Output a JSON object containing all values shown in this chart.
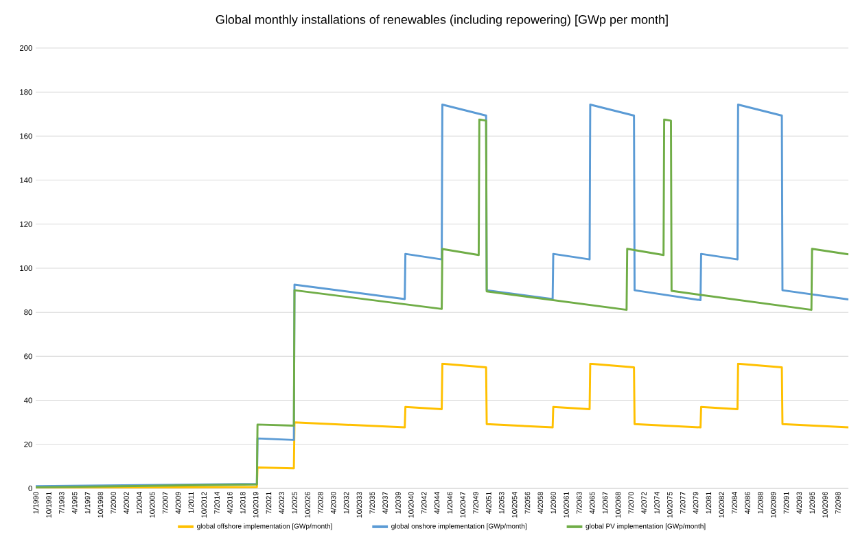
{
  "chart_data": {
    "type": "line",
    "title": "Global monthly installations of renewables (including repowering) [GWp per month]",
    "xlim": [
      "1990-01",
      "2099-12"
    ],
    "ylim": [
      0,
      200
    ],
    "yticks": [
      0,
      20,
      40,
      60,
      80,
      100,
      120,
      140,
      160,
      180,
      200
    ],
    "xticks": [
      {
        "value": "1990-01",
        "label": "1/1990"
      },
      {
        "value": "1991-10",
        "label": "10/1991"
      },
      {
        "value": "1993-07",
        "label": "7/1993"
      },
      {
        "value": "1995-04",
        "label": "4/1995"
      },
      {
        "value": "1997-01",
        "label": "1/1997"
      },
      {
        "value": "1998-10",
        "label": "10/1998"
      },
      {
        "value": "2000-07",
        "label": "7/2000"
      },
      {
        "value": "2002-04",
        "label": "4/2002"
      },
      {
        "value": "2004-01",
        "label": "1/2004"
      },
      {
        "value": "2005-10",
        "label": "10/2005"
      },
      {
        "value": "2007-07",
        "label": "7/2007"
      },
      {
        "value": "2009-04",
        "label": "4/2009"
      },
      {
        "value": "2011-01",
        "label": "1/2011"
      },
      {
        "value": "2012-10",
        "label": "10/2012"
      },
      {
        "value": "2014-07",
        "label": "7/2014"
      },
      {
        "value": "2016-04",
        "label": "4/2016"
      },
      {
        "value": "2018-01",
        "label": "1/2018"
      },
      {
        "value": "2019-10",
        "label": "10/2019"
      },
      {
        "value": "2021-07",
        "label": "7/2021"
      },
      {
        "value": "2023-04",
        "label": "4/2023"
      },
      {
        "value": "2025-01",
        "label": "1/2025"
      },
      {
        "value": "2026-10",
        "label": "10/2026"
      },
      {
        "value": "2028-07",
        "label": "7/2028"
      },
      {
        "value": "2030-04",
        "label": "4/2030"
      },
      {
        "value": "2032-01",
        "label": "1/2032"
      },
      {
        "value": "2033-10",
        "label": "10/2033"
      },
      {
        "value": "2035-07",
        "label": "7/2035"
      },
      {
        "value": "2037-04",
        "label": "4/2037"
      },
      {
        "value": "2039-01",
        "label": "1/2039"
      },
      {
        "value": "2040-10",
        "label": "10/2040"
      },
      {
        "value": "2042-07",
        "label": "7/2042"
      },
      {
        "value": "2044-04",
        "label": "4/2044"
      },
      {
        "value": "2046-01",
        "label": "1/2046"
      },
      {
        "value": "2047-10",
        "label": "10/2047"
      },
      {
        "value": "2049-07",
        "label": "7/2049"
      },
      {
        "value": "2051-04",
        "label": "4/2051"
      },
      {
        "value": "2053-01",
        "label": "1/2053"
      },
      {
        "value": "2054-10",
        "label": "10/2054"
      },
      {
        "value": "2056-07",
        "label": "7/2056"
      },
      {
        "value": "2058-04",
        "label": "4/2058"
      },
      {
        "value": "2060-01",
        "label": "1/2060"
      },
      {
        "value": "2061-10",
        "label": "10/2061"
      },
      {
        "value": "2063-07",
        "label": "7/2063"
      },
      {
        "value": "2065-04",
        "label": "4/2065"
      },
      {
        "value": "2067-01",
        "label": "1/2067"
      },
      {
        "value": "2068-10",
        "label": "10/2068"
      },
      {
        "value": "2070-07",
        "label": "7/2070"
      },
      {
        "value": "2072-04",
        "label": "4/2072"
      },
      {
        "value": "2074-01",
        "label": "1/2074"
      },
      {
        "value": "2075-10",
        "label": "10/2075"
      },
      {
        "value": "2077-07",
        "label": "7/2077"
      },
      {
        "value": "2079-04",
        "label": "4/2079"
      },
      {
        "value": "2081-01",
        "label": "1/2081"
      },
      {
        "value": "2082-10",
        "label": "10/2082"
      },
      {
        "value": "2084-07",
        "label": "7/2084"
      },
      {
        "value": "2086-04",
        "label": "4/2086"
      },
      {
        "value": "2088-01",
        "label": "1/2088"
      },
      {
        "value": "2089-10",
        "label": "10/2089"
      },
      {
        "value": "2091-07",
        "label": "7/2091"
      },
      {
        "value": "2093-04",
        "label": "4/2093"
      },
      {
        "value": "2095-01",
        "label": "1/2095"
      },
      {
        "value": "2096-10",
        "label": "10/2096"
      },
      {
        "value": "2098-07",
        "label": "7/2098"
      }
    ],
    "grid": "y",
    "legend": "bottom",
    "line_style": "solid",
    "series": [
      {
        "name": "global offshore implementation [GWp/month]",
        "color": "#ffc000",
        "x": [
          "1990-01",
          "2019-12",
          "2020-01",
          "2024-12",
          "2025-01",
          "2039-12",
          "2040-01",
          "2044-12",
          "2045-01",
          "2050-12",
          "2051-01",
          "2059-12",
          "2060-01",
          "2064-12",
          "2065-01",
          "2070-12",
          "2071-01",
          "2079-12",
          "2080-01",
          "2084-12",
          "2085-01",
          "2090-12",
          "2091-01",
          "2099-12"
        ],
        "values": [
          0.2,
          0.6,
          9.5,
          9.1,
          30,
          27.7,
          37,
          36,
          56.6,
          55,
          29.2,
          27.7,
          37,
          36,
          56.6,
          55,
          29.2,
          27.7,
          37,
          36,
          56.6,
          55,
          29.2,
          27.7
        ]
      },
      {
        "name": "global onshore implementation [GWp/month]",
        "color": "#5b9bd5",
        "x": [
          "1990-01",
          "2019-12",
          "2020-01",
          "2024-12",
          "2025-01",
          "2039-12",
          "2040-01",
          "2044-12",
          "2045-01",
          "2050-12",
          "2051-01",
          "2059-12",
          "2060-01",
          "2064-12",
          "2065-01",
          "2070-12",
          "2071-01",
          "2079-12",
          "2080-01",
          "2084-12",
          "2085-01",
          "2090-12",
          "2091-01",
          "2099-12"
        ],
        "values": [
          1.0,
          2.0,
          22.7,
          22.0,
          92.5,
          86,
          106.5,
          104,
          174.3,
          169.3,
          90,
          86,
          106.5,
          104,
          174.3,
          169.3,
          90,
          85.5,
          106.5,
          104,
          174.3,
          169.3,
          90,
          85.8
        ]
      },
      {
        "name": "global PV implementation [GWp/month]",
        "color": "#70ad47",
        "x": [
          "1990-01",
          "2019-12",
          "2020-01",
          "2024-12",
          "2025-01",
          "2044-12",
          "2045-01",
          "2049-12",
          "2050-01",
          "2050-12",
          "2051-01",
          "2069-12",
          "2070-01",
          "2074-12",
          "2075-01",
          "2075-12",
          "2076-01",
          "2094-12",
          "2095-01",
          "2099-12"
        ],
        "values": [
          0.5,
          1.8,
          29,
          28.5,
          90,
          81.5,
          108.7,
          106,
          167.5,
          167,
          89.5,
          81.1,
          108.8,
          106,
          167.5,
          167,
          89.7,
          81.1,
          108.8,
          106.3
        ]
      }
    ]
  }
}
